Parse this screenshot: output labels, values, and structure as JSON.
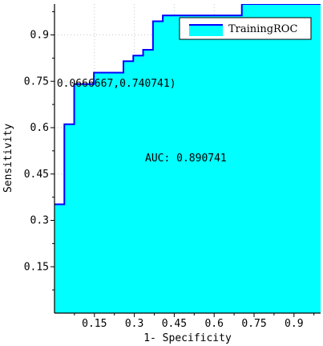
{
  "chart_data": {
    "type": "area",
    "xlabel": "1- Specificity",
    "ylabel": "Sensitivity",
    "xlim": [
      0,
      1
    ],
    "ylim": [
      0,
      1
    ],
    "grid": true,
    "legend_position": "top-right",
    "xticks": [
      0.15,
      0.3,
      0.45,
      0.6,
      0.75,
      0.9
    ],
    "xtick_labels": [
      "0.15",
      "0.3",
      "0.45",
      "0.6",
      "0.75",
      "0.9"
    ],
    "yticks": [
      0.15,
      0.3,
      0.45,
      0.6,
      0.75,
      0.9
    ],
    "ytick_labels": [
      "0.15",
      "0.3",
      "0.45",
      "0.6",
      "0.75",
      "0.9"
    ],
    "series": [
      {
        "name": "TrainingROC",
        "color": "#00FFFF",
        "line_color": "#0000FF",
        "x": [
          0,
          0.037,
          0.037,
          0.074,
          0.074,
          0.111,
          0.111,
          0.148,
          0.148,
          0.259,
          0.259,
          0.296,
          0.296,
          0.333,
          0.333,
          0.37,
          0.37,
          0.407,
          0.407,
          0.704,
          0.704,
          1.0
        ],
        "y": [
          0.352,
          0.352,
          0.611,
          0.611,
          0.741,
          0.741,
          0.741,
          0.741,
          0.778,
          0.778,
          0.815,
          0.815,
          0.833,
          0.833,
          0.852,
          0.852,
          0.944,
          0.944,
          0.963,
          0.963,
          1.0,
          1.0
        ]
      }
    ],
    "annotations": [
      {
        "text": "(0.0666667,0.740741)",
        "x": 0.1,
        "y": 0.741
      },
      {
        "text": "AUC: 0.890741",
        "x": 0.5,
        "y": 0.5
      }
    ]
  }
}
